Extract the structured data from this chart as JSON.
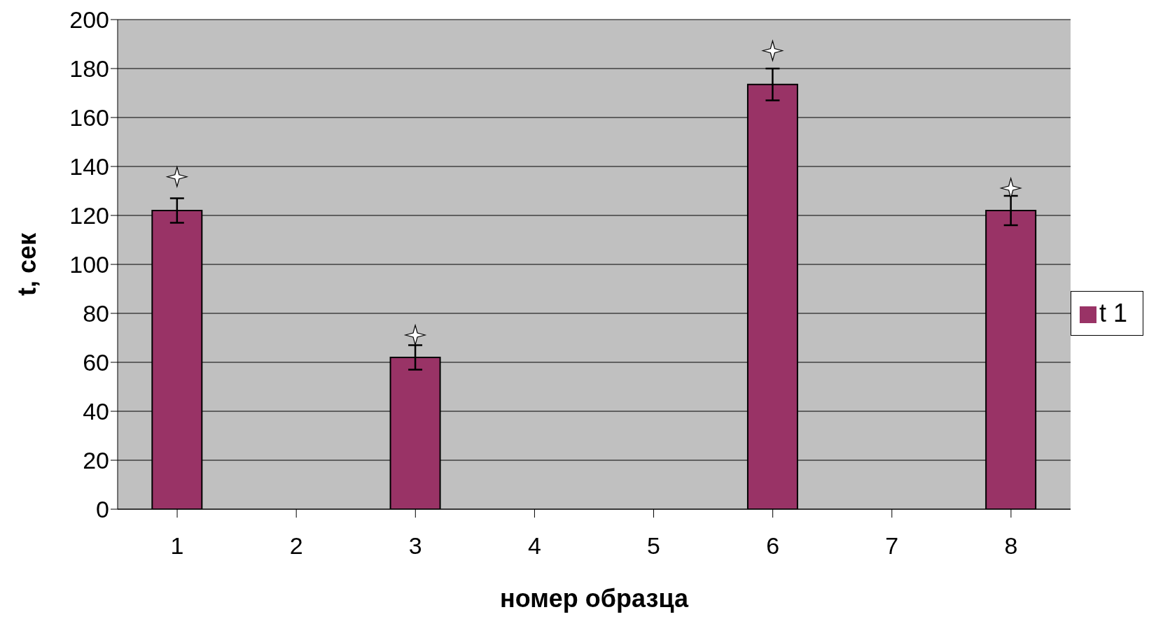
{
  "chart_data": {
    "type": "bar",
    "xlabel": "номер образца",
    "ylabel": "t, сек",
    "categories": [
      "1",
      "2",
      "3",
      "4",
      "5",
      "6",
      "7",
      "8"
    ],
    "series": [
      {
        "name": "t 1",
        "color": "#993366",
        "values": [
          122,
          null,
          62,
          null,
          null,
          173.5,
          null,
          122
        ],
        "errors": [
          5,
          null,
          5,
          null,
          null,
          6.5,
          null,
          6
        ]
      }
    ],
    "ylim": [
      0,
      200
    ],
    "yticks": [
      0,
      20,
      40,
      60,
      80,
      100,
      120,
      140,
      160,
      180,
      200
    ],
    "grid": "y",
    "legend": "right"
  }
}
